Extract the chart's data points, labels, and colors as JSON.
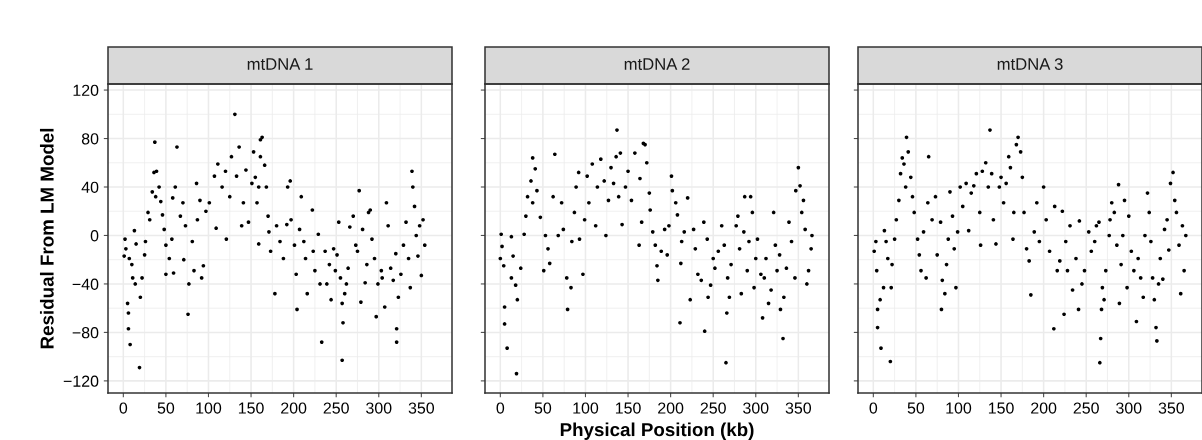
{
  "chart_data": [
    {
      "type": "scatter",
      "title": "mtDNA 1",
      "ylabel": "Residual From LM Model",
      "xlim": [
        -18,
        386
      ],
      "ylim": [
        -130,
        125
      ],
      "xticks": [
        0,
        50,
        100,
        150,
        200,
        250,
        300,
        350
      ],
      "yticks": [
        {
          "value": -120,
          "label": "−120"
        },
        {
          "value": -80,
          "label": "−80"
        },
        {
          "value": -40,
          "label": "−40"
        },
        0,
        40,
        80,
        120
      ],
      "grid": true,
      "marker": "circle",
      "series": [
        {
          "color": "#000000",
          "x": [
            2,
            3,
            1,
            7,
            5,
            6,
            6,
            8,
            19,
            13,
            15,
            10,
            11,
            14,
            20,
            22,
            25,
            26,
            29,
            31,
            34,
            37,
            36,
            39,
            38,
            42,
            44,
            46,
            48,
            50,
            50,
            54,
            57,
            59,
            58,
            61,
            63,
            67,
            70,
            71,
            73,
            77,
            76,
            81,
            83,
            86,
            87,
            90,
            92,
            94,
            97,
            101,
            109,
            107,
            111,
            116,
            120,
            121,
            125,
            127,
            133,
            131,
            136,
            139,
            141,
            144,
            147,
            151,
            155,
            153,
            157,
            159,
            161,
            161,
            163,
            159,
            166,
            168,
            170,
            171,
            173,
            178,
            180,
            184,
            188,
            192,
            193,
            196,
            197,
            201,
            204,
            203,
            207,
            209,
            212,
            214,
            216,
            222,
            223,
            225,
            229,
            231,
            233,
            237,
            239,
            242,
            244,
            247,
            249,
            251,
            253,
            255,
            257,
            257,
            258,
            260,
            262,
            264,
            266,
            270,
            273,
            275,
            277,
            279,
            281,
            284,
            286,
            288,
            290,
            292,
            295,
            297,
            299,
            303,
            304,
            307,
            309,
            311,
            314,
            317,
            320,
            321,
            321,
            323,
            326,
            329,
            332,
            335,
            337,
            339,
            340,
            342,
            344,
            346,
            348,
            350,
            352,
            354
          ],
          "values": [
            -3,
            -11,
            -17,
            -19,
            -56,
            -64,
            -77,
            -90,
            -109,
            4,
            -7,
            -24,
            -35,
            -40,
            -51,
            -35,
            -16,
            -5,
            19,
            13,
            36,
            77,
            52,
            53,
            32,
            40,
            28,
            17,
            5,
            -8,
            -32,
            -19,
            -3,
            -31,
            31,
            40,
            73,
            16,
            27,
            -20,
            8,
            -40,
            -65,
            -5,
            -29,
            43,
            13,
            29,
            -35,
            -25,
            20,
            27,
            6,
            49,
            59,
            40,
            53,
            -3,
            32,
            65,
            49,
            100,
            73,
            8,
            27,
            54,
            11,
            43,
            48,
            69,
            27,
            40,
            65,
            79,
            81,
            -7,
            58,
            40,
            16,
            3,
            -13,
            -48,
            8,
            -5,
            -19,
            9,
            40,
            45,
            13,
            -8,
            -61,
            -32,
            5,
            32,
            -5,
            -19,
            -48,
            21,
            -13,
            -29,
            1,
            -40,
            -88,
            -13,
            -40,
            -24,
            -53,
            -11,
            -29,
            -16,
            11,
            -35,
            -56,
            -103,
            -72,
            -48,
            -40,
            -27,
            7,
            16,
            -8,
            -13,
            37,
            -55,
            5,
            -39,
            -24,
            19,
            21,
            -3,
            -19,
            -67,
            -40,
            -29,
            -35,
            -59,
            27,
            8,
            -27,
            -37,
            -15,
            -77,
            -88,
            -51,
            -32,
            -8,
            11,
            -19,
            -43,
            53,
            40,
            24,
            0,
            -17,
            8,
            -33,
            13,
            -8
          ]
        }
      ]
    },
    {
      "type": "scatter",
      "title": "mtDNA 2",
      "xlabel": "Physical Position (kb)",
      "xlim": [
        -18,
        386
      ],
      "ylim": [
        -130,
        125
      ],
      "xticks": [
        0,
        50,
        100,
        150,
        200,
        250,
        300,
        350
      ],
      "yticks": [
        -120,
        -80,
        -40,
        0,
        40,
        80,
        120
      ],
      "grid": true,
      "marker": "circle",
      "tick_labels": "x",
      "series": [
        {
          "color": "#000000",
          "x": [
            1,
            2,
            0,
            4,
            5,
            5,
            8,
            19,
            13,
            15,
            13,
            18,
            20,
            24,
            28,
            30,
            32,
            36,
            38,
            41,
            38,
            43,
            47,
            51,
            53,
            56,
            58,
            62,
            64,
            68,
            72,
            74,
            78,
            79,
            83,
            84,
            87,
            89,
            92,
            93,
            97,
            99,
            102,
            104,
            108,
            112,
            114,
            118,
            122,
            124,
            127,
            130,
            133,
            136,
            137,
            139,
            141,
            143,
            147,
            150,
            154,
            158,
            163,
            164,
            166,
            168,
            170,
            172,
            175,
            176,
            179,
            182,
            184,
            185,
            189,
            193,
            196,
            198,
            201,
            202,
            206,
            208,
            211,
            212,
            213,
            216,
            220,
            223,
            227,
            229,
            232,
            236,
            239,
            240,
            243,
            244,
            247,
            250,
            252,
            256,
            260,
            263,
            265,
            266,
            267,
            269,
            271,
            277,
            279,
            281,
            283,
            286,
            287,
            290,
            292,
            294,
            296,
            298,
            300,
            302,
            306,
            308,
            310,
            312,
            315,
            318,
            321,
            323,
            325,
            328,
            329,
            332,
            333,
            336,
            339,
            342,
            346,
            347,
            350,
            352,
            354,
            356,
            358,
            360,
            362,
            365,
            366
          ],
          "values": [
            1,
            -9,
            -19,
            -25,
            -59,
            -73,
            -93,
            -114,
            -1,
            -17,
            -35,
            -41,
            -53,
            -27,
            1,
            16,
            32,
            45,
            64,
            55,
            27,
            37,
            15,
            -29,
            0,
            -11,
            -23,
            32,
            67,
            0,
            27,
            5,
            -35,
            -61,
            -43,
            -5,
            19,
            40,
            52,
            -3,
            -32,
            13,
            49,
            27,
            59,
            8,
            40,
            63,
            45,
            0,
            29,
            56,
            43,
            65,
            87,
            32,
            68,
            9,
            40,
            53,
            29,
            68,
            -8,
            47,
            11,
            76,
            75,
            60,
            35,
            21,
            3,
            -8,
            -25,
            -37,
            -13,
            5,
            -16,
            8,
            49,
            37,
            27,
            17,
            -72,
            -23,
            -5,
            3,
            31,
            -53,
            5,
            -11,
            -32,
            -37,
            11,
            -79,
            -3,
            -51,
            -41,
            -19,
            -27,
            -13,
            8,
            -8,
            -105,
            -64,
            -35,
            -51,
            -24,
            8,
            16,
            -11,
            -48,
            3,
            32,
            -29,
            -5,
            32,
            19,
            -43,
            -19,
            -3,
            -32,
            -68,
            -35,
            -19,
            -56,
            -45,
            19,
            -8,
            -29,
            -16,
            -61,
            -85,
            -51,
            -27,
            11,
            -5,
            -35,
            37,
            56,
            41,
            19,
            29,
            5,
            -40,
            -29,
            -11,
            0
          ]
        }
      ]
    },
    {
      "type": "scatter",
      "title": "mtDNA 3",
      "xlim": [
        -18,
        386
      ],
      "ylim": [
        -130,
        125
      ],
      "xticks": [
        0,
        50,
        100,
        150,
        200,
        250,
        300,
        350
      ],
      "yticks": [
        -120,
        -80,
        -40,
        0,
        40,
        80,
        120
      ],
      "grid": true,
      "marker": "circle",
      "tick_labels": "x",
      "series": [
        {
          "color": "#000000",
          "x": [
            1,
            3,
            4,
            5,
            5,
            8,
            9,
            12,
            13,
            15,
            17,
            20,
            21,
            22,
            25,
            27,
            30,
            32,
            34,
            36,
            39,
            38,
            41,
            44,
            46,
            48,
            52,
            54,
            56,
            59,
            62,
            65,
            64,
            69,
            73,
            75,
            79,
            81,
            80,
            84,
            86,
            88,
            90,
            93,
            95,
            97,
            99,
            102,
            105,
            109,
            112,
            115,
            118,
            121,
            125,
            126,
            128,
            132,
            135,
            137,
            139,
            141,
            144,
            148,
            150,
            153,
            156,
            159,
            161,
            164,
            165,
            168,
            170,
            173,
            175,
            177,
            180,
            183,
            185,
            189,
            192,
            195,
            200,
            203,
            207,
            212,
            213,
            216,
            219,
            222,
            224,
            226,
            228,
            231,
            234,
            238,
            241,
            242,
            245,
            248,
            253,
            256,
            260,
            262,
            265,
            266,
            267,
            268,
            269,
            271,
            273,
            277,
            278,
            280,
            283,
            286,
            288,
            289,
            291,
            293,
            295,
            298,
            300,
            303,
            306,
            309,
            311,
            314,
            317,
            319,
            322,
            324,
            326,
            328,
            330,
            332,
            333,
            335,
            337,
            340,
            342,
            345,
            347,
            349,
            352,
            354,
            356,
            359,
            361,
            363,
            365,
            367
          ],
          "values": [
            -13,
            -5,
            -29,
            -61,
            -76,
            -53,
            -93,
            -43,
            4,
            -5,
            -19,
            -104,
            -43,
            -24,
            -3,
            13,
            29,
            51,
            64,
            59,
            81,
            40,
            69,
            48,
            32,
            19,
            -3,
            -16,
            -29,
            3,
            -35,
            65,
            27,
            13,
            32,
            -16,
            11,
            -37,
            -61,
            -48,
            -24,
            -3,
            36,
            16,
            -11,
            -43,
            3,
            40,
            24,
            43,
            4,
            35,
            41,
            51,
            19,
            -8,
            53,
            60,
            40,
            87,
            51,
            13,
            -7,
            40,
            48,
            27,
            43,
            65,
            56,
            -3,
            19,
            75,
            81,
            69,
            48,
            19,
            -11,
            -21,
            -49,
            3,
            27,
            -5,
            40,
            13,
            -13,
            -77,
            24,
            -29,
            -21,
            20,
            -65,
            -5,
            -29,
            8,
            -45,
            -19,
            -61,
            12,
            -40,
            -29,
            3,
            -13,
            -5,
            8,
            11,
            -105,
            -85,
            -61,
            -43,
            -53,
            -29,
            0,
            13,
            27,
            19,
            -8,
            42,
            -56,
            -24,
            0,
            29,
            -43,
            16,
            -13,
            -29,
            -71,
            -19,
            -35,
            -51,
            0,
            35,
            19,
            -5,
            -35,
            -53,
            -76,
            -87,
            -40,
            -19,
            -36,
            5,
            13,
            -12,
            43,
            52,
            29,
            19,
            -8,
            -48,
            8,
            -29,
            0
          ]
        }
      ]
    }
  ]
}
